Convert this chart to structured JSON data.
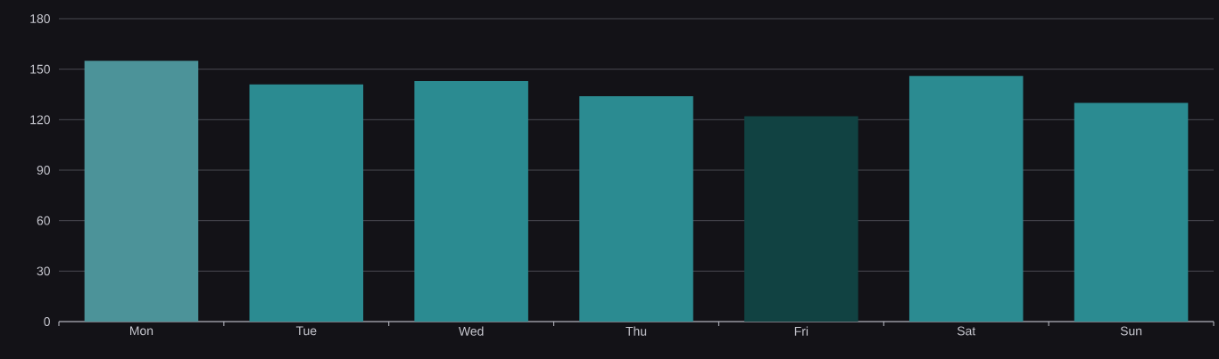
{
  "chart_data": {
    "type": "bar",
    "categories": [
      "Mon",
      "Tue",
      "Wed",
      "Thu",
      "Fri",
      "Sat",
      "Sun"
    ],
    "values": [
      155,
      141,
      143,
      134,
      122,
      146,
      130
    ],
    "colors": [
      "#4c9399",
      "#2b8b91",
      "#2b8b91",
      "#2b8b91",
      "#114242",
      "#2b8b91",
      "#2b8b91"
    ],
    "ylim": [
      0,
      180
    ],
    "yticks": [
      0,
      30,
      60,
      90,
      120,
      150,
      180
    ],
    "grid": "y"
  }
}
